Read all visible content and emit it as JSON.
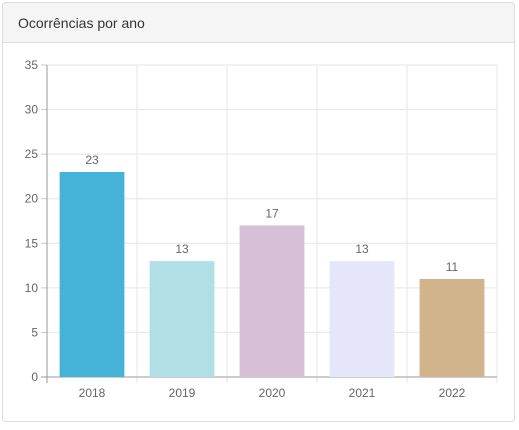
{
  "header": {
    "title": "Ocorrências por ano"
  },
  "chart_data": {
    "type": "bar",
    "title": "Ocorrências por ano",
    "categories": [
      "2018",
      "2019",
      "2020",
      "2021",
      "2022"
    ],
    "values": [
      23,
      13,
      17,
      13,
      11
    ],
    "data_labels": [
      "23",
      "13",
      "17",
      "13",
      "11"
    ],
    "bar_colors": [
      "#45b3d7",
      "#b0e0e6",
      "#d8bfd8",
      "#e6e6fa",
      "#d2b48c"
    ],
    "y_ticks": [
      0,
      5,
      10,
      15,
      20,
      25,
      30,
      35
    ],
    "ylim": [
      0,
      35
    ],
    "xlabel": "",
    "ylabel": "",
    "grid": true,
    "legend": "none"
  }
}
